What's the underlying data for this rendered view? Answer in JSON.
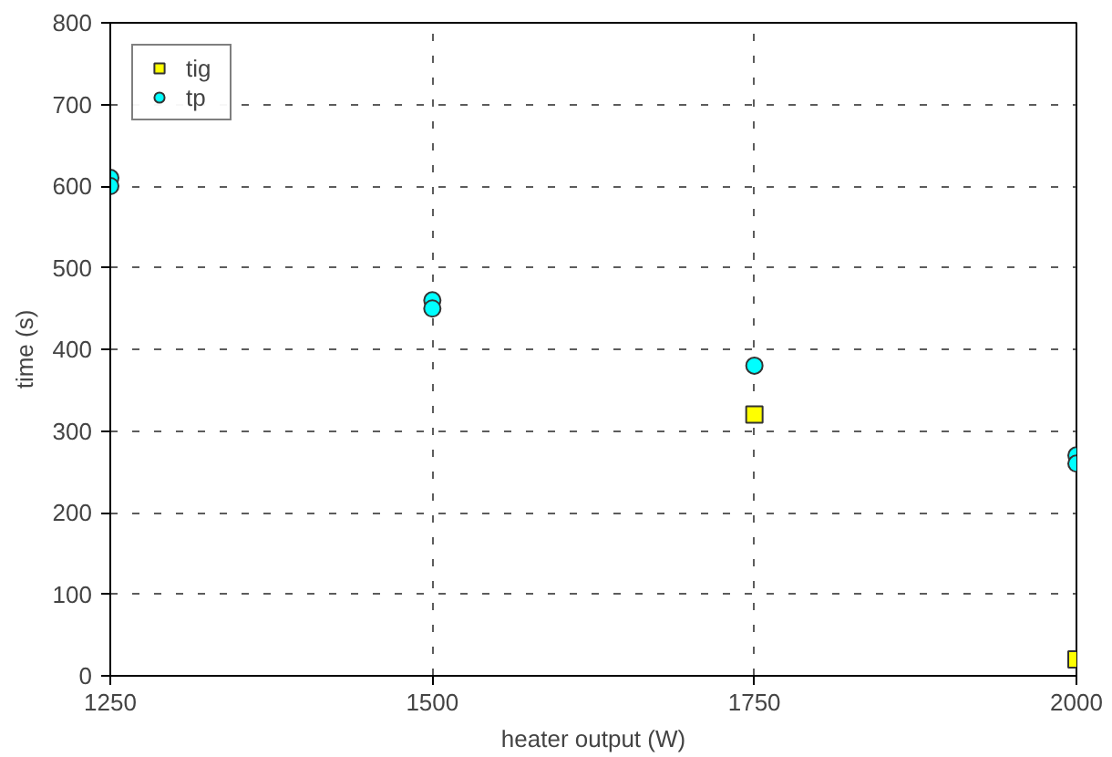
{
  "chart_data": {
    "type": "scatter",
    "xlabel": "heater output (W)",
    "ylabel": "time (s)",
    "xlim": [
      1250,
      2000
    ],
    "xticks": [
      1250,
      1500,
      1750,
      2000
    ],
    "ylim": [
      0,
      800
    ],
    "yticks": [
      0,
      100,
      200,
      300,
      400,
      500,
      600,
      700,
      800
    ],
    "grid": true,
    "legend": "top left",
    "series": [
      {
        "name": "tig",
        "color": "#ffff00",
        "marker": "square",
        "x": [
          1750,
          2000
        ],
        "values": [
          320,
          20
        ]
      },
      {
        "name": "tp",
        "color": "#00ffff",
        "marker": "circle",
        "x": [
          1250,
          1250,
          1500,
          1500,
          1750,
          2000,
          2000
        ],
        "values": [
          610,
          600,
          460,
          450,
          380,
          270,
          260
        ]
      }
    ]
  }
}
